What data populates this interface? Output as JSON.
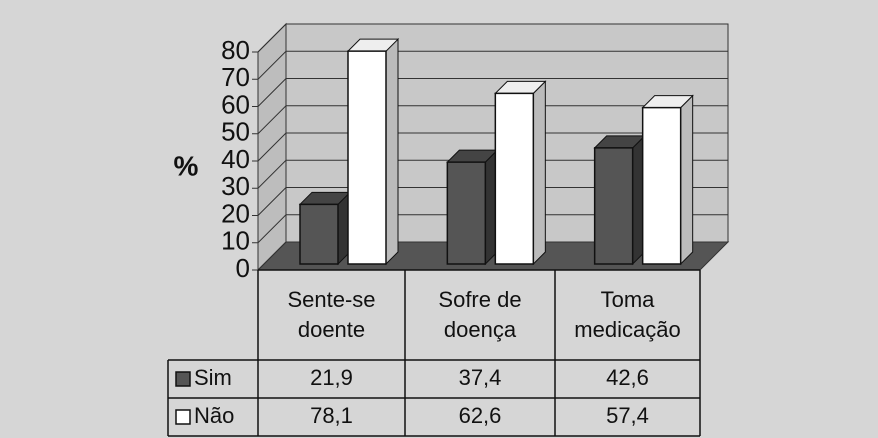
{
  "chart_data": {
    "type": "bar3d",
    "ylabel": "%",
    "categories": [
      "Sente-se doente",
      "Sofre de doença",
      "Toma medicação"
    ],
    "series": [
      {
        "name": "Sim",
        "color": "#555555",
        "values": [
          21.9,
          37.4,
          42.6
        ],
        "value_labels": [
          "21,9",
          "37,4",
          "42,6"
        ]
      },
      {
        "name": "Não",
        "color": "#ffffff",
        "values": [
          78.1,
          62.6,
          57.4
        ],
        "value_labels": [
          "78,1",
          "62,6",
          "57,4"
        ]
      }
    ],
    "ylim": [
      0,
      80
    ],
    "yticks": [
      0,
      10,
      20,
      30,
      40,
      50,
      60,
      70,
      80
    ],
    "grid": true
  }
}
